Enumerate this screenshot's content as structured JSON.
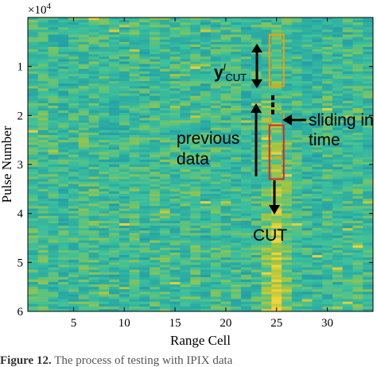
{
  "chart_data": {
    "type": "heatmap",
    "xlabel": "Range Cell",
    "ylabel": "Pulse Number",
    "y_scale_label": "×10",
    "y_scale_exponent": "4",
    "xlim": [
      0.5,
      34.5
    ],
    "ylim": [
      0,
      60000
    ],
    "x_ticks": [
      5,
      10,
      15,
      20,
      25,
      30
    ],
    "x_tick_labels": [
      "5",
      "10",
      "15",
      "20",
      "25",
      "30"
    ],
    "y_ticks": [
      10000,
      20000,
      30000,
      40000,
      50000,
      60000
    ],
    "y_tick_labels": [
      "1",
      "2",
      "3",
      "4",
      "5",
      "6"
    ],
    "y_direction": "reversed",
    "colormap": [
      "#1f77b4",
      "#27a7a4",
      "#3ec19b",
      "#a8c53a",
      "#f0d23a"
    ],
    "target_range_cell": 25,
    "annotations": {
      "training_label": "y",
      "training_sup": "l",
      "training_sub": "CUT",
      "sliding_line1": "sliding in",
      "sliding_line2": "time",
      "previous_line1": "previous",
      "previous_line2": "data",
      "cut_label": "CUT"
    },
    "windows": [
      {
        "name": "training",
        "range_cell": 25,
        "pulse_start": 3500,
        "pulse_end": 14000,
        "color": "#ff9a00",
        "style": "solid"
      },
      {
        "name": "previous",
        "range_cell": 25,
        "pulse_start": 19500,
        "pulse_end": 28500,
        "color": "#ff9a00",
        "style": "dash-dot"
      },
      {
        "name": "cut",
        "range_cell": 25,
        "pulse_start": 22000,
        "pulse_end": 33000,
        "color": "#d62728",
        "style": "solid"
      }
    ]
  },
  "caption": {
    "label": "Figure 12.",
    "text": " The process of testing with IPIX data"
  }
}
